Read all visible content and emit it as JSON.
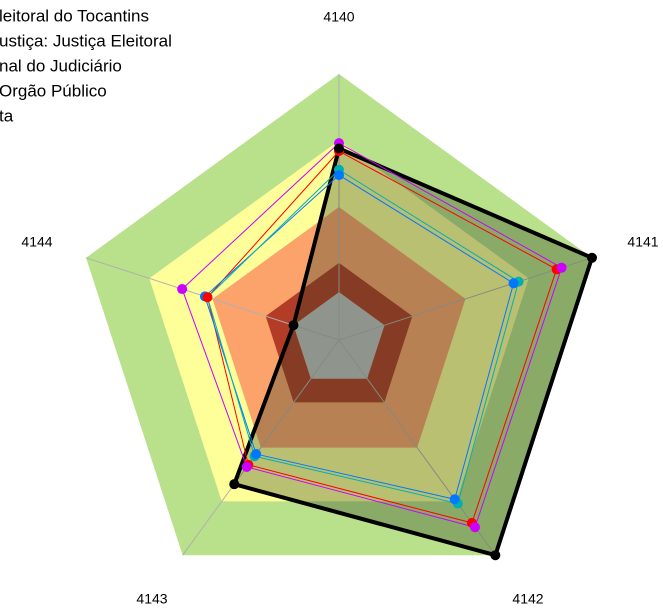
{
  "chart_data": {
    "type": "radar",
    "categories": [
      "4140",
      "4141",
      "4142",
      "4143",
      "4144"
    ],
    "rlim": [
      0,
      100
    ],
    "bands": [
      {
        "value": 100,
        "color": "#b9e08a"
      },
      {
        "value": 75,
        "color": "#ffff99"
      },
      {
        "value": 50,
        "color": "#fca36c"
      },
      {
        "value": 29,
        "color": "#b33c27"
      },
      {
        "value": 18,
        "color": "#c0c0c0"
      }
    ],
    "series": [
      {
        "name": "leitoral do Tocantins",
        "color": "#000000",
        "values": [
          72,
          100,
          100,
          67,
          18
        ],
        "fill": "rgba(40,60,30,0.32)"
      },
      {
        "name": "ustiça: Justiça Eleitoral",
        "color": "#cc00ff",
        "values": [
          74,
          88,
          87,
          59,
          62
        ]
      },
      {
        "name": "nal do Judiciário",
        "color": "#ff0000",
        "values": [
          71,
          86,
          85,
          58,
          52
        ]
      },
      {
        "name": "Orgão Público",
        "color": "#0077ff",
        "values": [
          62,
          69,
          74,
          53,
          53
        ]
      },
      {
        "name": "ta",
        "color": "#00b0b0",
        "values": [
          64,
          71,
          76,
          54,
          52
        ]
      }
    ]
  }
}
